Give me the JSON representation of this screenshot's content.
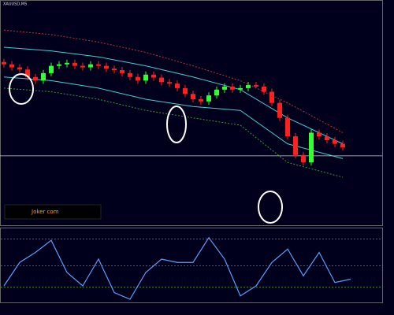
{
  "chart_data": [
    {
      "type": "candlestick",
      "title": "XAUUSD,M5",
      "annotation": "Joker com",
      "ylim": [
        0,
        100
      ],
      "open": [
        74.0,
        72.9,
        71.5,
        70.5,
        67.0,
        65.3,
        68.8,
        72.2,
        72.9,
        73.6,
        72.2,
        71.5,
        72.9,
        72.2,
        70.9,
        70.2,
        68.8,
        67.0,
        65.3,
        68.1,
        66.7,
        64.6,
        63.9,
        61.8,
        59.1,
        56.6,
        55.6,
        58.4,
        61.1,
        62.5,
        61.1,
        61.8,
        63.2,
        62.5,
        60.1,
        54.9,
        47.9,
        39.3,
        30.6,
        27.1,
        41.0,
        39.3,
        37.5,
        35.8
      ],
      "high": [
        75.5,
        74.4,
        73.0,
        72.0,
        68.5,
        70.3,
        73.7,
        74.4,
        75.1,
        75.1,
        73.7,
        74.4,
        74.4,
        73.7,
        72.4,
        71.7,
        70.3,
        68.5,
        69.6,
        69.6,
        68.2,
        66.1,
        65.4,
        63.3,
        60.6,
        58.1,
        59.9,
        62.6,
        64.0,
        64.0,
        63.3,
        64.7,
        64.7,
        64.0,
        61.6,
        56.4,
        49.4,
        40.8,
        32.1,
        42.5,
        42.5,
        40.8,
        39.0,
        37.3
      ],
      "low": [
        71.4,
        70.0,
        69.0,
        65.5,
        63.8,
        63.8,
        67.3,
        70.7,
        71.4,
        70.7,
        70.0,
        70.0,
        70.7,
        69.4,
        68.7,
        67.3,
        65.5,
        63.8,
        63.8,
        65.2,
        63.1,
        62.4,
        60.3,
        57.6,
        55.1,
        54.1,
        54.1,
        56.9,
        59.6,
        59.6,
        59.6,
        60.3,
        61.7,
        58.6,
        53.4,
        46.4,
        37.8,
        29.1,
        25.6,
        25.6,
        37.8,
        36.0,
        34.3,
        32.6
      ],
      "close": [
        72.9,
        71.5,
        70.5,
        67.0,
        65.3,
        68.8,
        72.2,
        72.9,
        73.6,
        72.2,
        71.5,
        72.9,
        72.2,
        70.9,
        70.2,
        68.8,
        67.0,
        65.3,
        68.1,
        66.7,
        64.6,
        63.9,
        61.8,
        59.1,
        56.6,
        55.6,
        58.4,
        61.1,
        62.5,
        61.1,
        61.8,
        63.2,
        62.5,
        60.1,
        54.9,
        47.9,
        39.3,
        30.6,
        27.1,
        41.0,
        39.3,
        37.5,
        35.8,
        34.1
      ],
      "up_color": "#33ff33",
      "down_color": "#ff2020",
      "price_line": 30.2,
      "bands": {
        "x": [
          0,
          6,
          12,
          18,
          24,
          30,
          36,
          43
        ],
        "series": [
          {
            "color": "#c03030",
            "dash": true,
            "values": [
              88.9,
              86.8,
              83.3,
              78.5,
              72.2,
              65.3,
              54.9,
              41.0
            ]
          },
          {
            "color": "#40d0d0",
            "dash": false,
            "values": [
              80.9,
              79.2,
              76.4,
              72.2,
              67.0,
              61.1,
              47.9,
              35.8
            ]
          },
          {
            "color": "#40d0d0",
            "dash": false,
            "values": [
              67.0,
              65.3,
              61.8,
              56.6,
              53.2,
              51.4,
              35.8,
              28.9
            ]
          },
          {
            "color": "#30a030",
            "dash": true,
            "values": [
              61.8,
              60.1,
              56.6,
              51.4,
              47.9,
              44.5,
              27.1,
              20.2
            ]
          }
        ]
      }
    },
    {
      "type": "line",
      "ylim": [
        0,
        100
      ],
      "levels": [
        {
          "value": 90,
          "color": "#c03030"
        },
        {
          "value": 50,
          "color": "#555566"
        },
        {
          "value": 18,
          "color": "#30a030"
        }
      ],
      "x": [
        0,
        2,
        4,
        6,
        8,
        10,
        12,
        14,
        16,
        18,
        20,
        22,
        24,
        26,
        28,
        30,
        32,
        34,
        36,
        38,
        40,
        42,
        44
      ],
      "series": [
        {
          "color": "#5aa0ff",
          "values": [
            20,
            55,
            70,
            88,
            40,
            20,
            60,
            10,
            0,
            40,
            60,
            55,
            55,
            92,
            60,
            5,
            20,
            55,
            75,
            35,
            70,
            25,
            30
          ]
        }
      ]
    }
  ]
}
